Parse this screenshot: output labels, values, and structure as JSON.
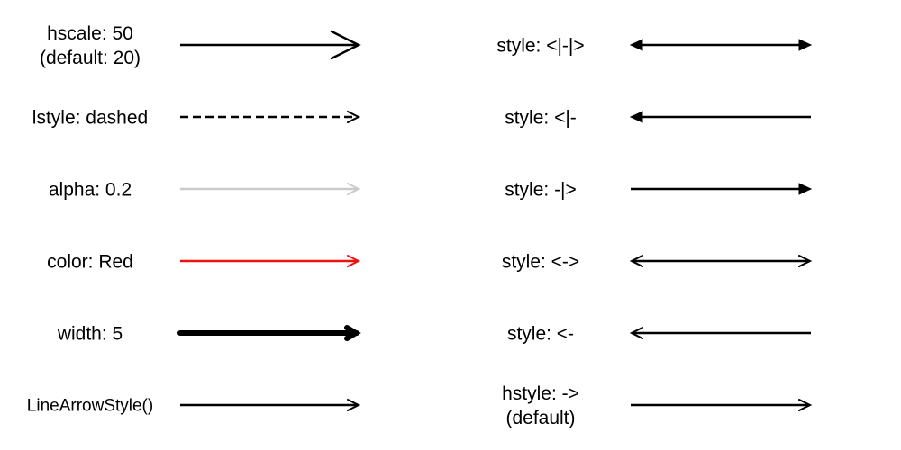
{
  "background": "#ffffff",
  "left_rows": [
    {
      "id": "hscale",
      "lines": [
        "hscale: 50",
        "(default: 20)"
      ],
      "style": "->",
      "color": "#000000",
      "alpha": 1.0,
      "dash": false,
      "linewidth": 2.5,
      "head": "big-open"
    },
    {
      "id": "lstyle",
      "lines": [
        "lstyle: dashed"
      ],
      "style": "->",
      "color": "#000000",
      "alpha": 1.0,
      "dash": true,
      "linewidth": 2.5,
      "head": "open"
    },
    {
      "id": "alpha",
      "lines": [
        "alpha: 0.2"
      ],
      "style": "->",
      "color": "#000000",
      "alpha": 0.2,
      "dash": false,
      "linewidth": 2.5,
      "head": "open"
    },
    {
      "id": "color",
      "lines": [
        "color: Red"
      ],
      "style": "->",
      "color": "#ee1111",
      "alpha": 1.0,
      "dash": false,
      "linewidth": 2.5,
      "head": "open"
    },
    {
      "id": "width",
      "lines": [
        "width: 5"
      ],
      "style": "->",
      "color": "#000000",
      "alpha": 1.0,
      "dash": false,
      "linewidth": 6,
      "head": "thick"
    },
    {
      "id": "default-call",
      "lines": [
        "LineArrowStyle()"
      ],
      "style": "->",
      "color": "#000000",
      "alpha": 1.0,
      "dash": false,
      "linewidth": 2.5,
      "head": "open"
    }
  ],
  "right_rows": [
    {
      "id": "both-filled",
      "lines": [
        "style: <|-|>"
      ],
      "style": "<|-|>",
      "color": "#000000",
      "alpha": 1.0
    },
    {
      "id": "start-filled",
      "lines": [
        "style: <|-"
      ],
      "style": "<|-",
      "color": "#000000",
      "alpha": 1.0
    },
    {
      "id": "end-filled",
      "lines": [
        "style: -|>"
      ],
      "style": "-|>",
      "color": "#000000",
      "alpha": 1.0
    },
    {
      "id": "both-open",
      "lines": [
        "style: <->"
      ],
      "style": "<->",
      "color": "#000000",
      "alpha": 1.0
    },
    {
      "id": "start-open",
      "lines": [
        "style: <-"
      ],
      "style": "<-",
      "color": "#000000",
      "alpha": 1.0
    },
    {
      "id": "hstyle-default",
      "lines": [
        "hstyle: ->",
        "(default)"
      ],
      "style": "->",
      "color": "#000000",
      "alpha": 1.0
    }
  ]
}
